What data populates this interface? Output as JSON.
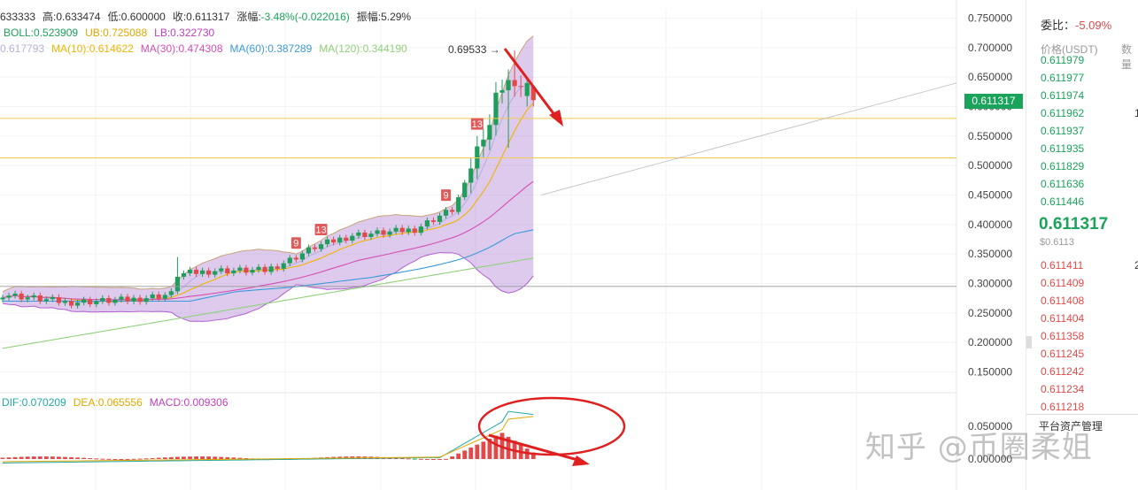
{
  "chart_data": {
    "type": "candlestick",
    "price_axis": {
      "ticks": [
        "0.750000",
        "0.700000",
        "0.650000",
        "0.600000",
        "0.550000",
        "0.500000",
        "0.450000",
        "0.400000",
        "0.350000",
        "0.300000",
        "0.250000",
        "0.200000",
        "0.150000"
      ],
      "tick_values": [
        0.75,
        0.7,
        0.65,
        0.6,
        0.55,
        0.5,
        0.45,
        0.4,
        0.35,
        0.3,
        0.25,
        0.2,
        0.15
      ],
      "range": [
        0.12,
        0.78
      ]
    },
    "macd_axis": {
      "ticks": [
        "0.050000",
        "0.000000"
      ],
      "tick_values": [
        0.05,
        0.0
      ]
    },
    "info": {
      "open": "633333",
      "high": "高:0.633474",
      "low": "低:0.600000",
      "close": "收:0.611317",
      "change_label": "涨幅:",
      "change": "-3.48%(-0.022016)",
      "amplitude": "振幅:5.29%"
    },
    "boll": {
      "label": "BOLL:0.523909",
      "ub": "UB:0.725088",
      "lb": "LB:0.322730"
    },
    "ma": [
      {
        "label": "0.617793",
        "value": 0.617793,
        "color": "#b6b1dd"
      },
      {
        "label": "MA(10):0.614622",
        "value": 0.614622,
        "color": "#f0b400"
      },
      {
        "label": "MA(30):0.474308",
        "value": 0.474308,
        "color": "#d44fb5"
      },
      {
        "label": "MA(60):0.387289",
        "value": 0.387289,
        "color": "#3a9ad9"
      },
      {
        "label": "MA(120):0.344190",
        "value": 0.34419,
        "color": "#8fd17a"
      }
    ],
    "macd": {
      "dif": "DIF:0.070209",
      "dea": "DEA:0.065556",
      "macd": "MACD:0.009306"
    },
    "last_price": "0.611317",
    "high_label": "0.69533",
    "td_labels": [
      {
        "text": "9",
        "index": 47
      },
      {
        "text": "13",
        "index": 51
      },
      {
        "text": "9",
        "index": 71
      },
      {
        "text": "13",
        "index": 76
      }
    ],
    "horizontal_lines": [
      0.58,
      0.513
    ],
    "colors": {
      "up": "#1e9e5a",
      "down": "#e04a4a",
      "boll_fill": "#b48ad8",
      "hline": "#f2c94c",
      "annotation": "#e02020"
    }
  },
  "orderbook": {
    "ratio_label": "委比：",
    "ratio_value": "-5.09%",
    "col_price": "价格(USDT)",
    "col_qty": "数量",
    "bids": [
      {
        "price": "0.611979",
        "qty": ""
      },
      {
        "price": "0.611977",
        "qty": ""
      },
      {
        "price": "0.611974",
        "qty": ""
      },
      {
        "price": "0.611962",
        "qty": "1"
      },
      {
        "price": "0.611937",
        "qty": ""
      },
      {
        "price": "0.611935",
        "qty": ""
      },
      {
        "price": "0.611829",
        "qty": ""
      },
      {
        "price": "0.611636",
        "qty": ""
      },
      {
        "price": "0.611446",
        "qty": ""
      }
    ],
    "last": "0.611317",
    "last_usd": "$0.6113",
    "asks": [
      {
        "price": "0.611411",
        "qty": "2"
      },
      {
        "price": "0.611409",
        "qty": ""
      },
      {
        "price": "0.611408",
        "qty": ""
      },
      {
        "price": "0.611404",
        "qty": ""
      },
      {
        "price": "0.611358",
        "qty": ""
      },
      {
        "price": "0.611245",
        "qty": ""
      },
      {
        "price": "0.611242",
        "qty": ""
      },
      {
        "price": "0.611234",
        "qty": ""
      },
      {
        "price": "0.611218",
        "qty": ""
      }
    ],
    "footer": "平台资产管理"
  },
  "watermark": "知乎 @币圈柔姐"
}
